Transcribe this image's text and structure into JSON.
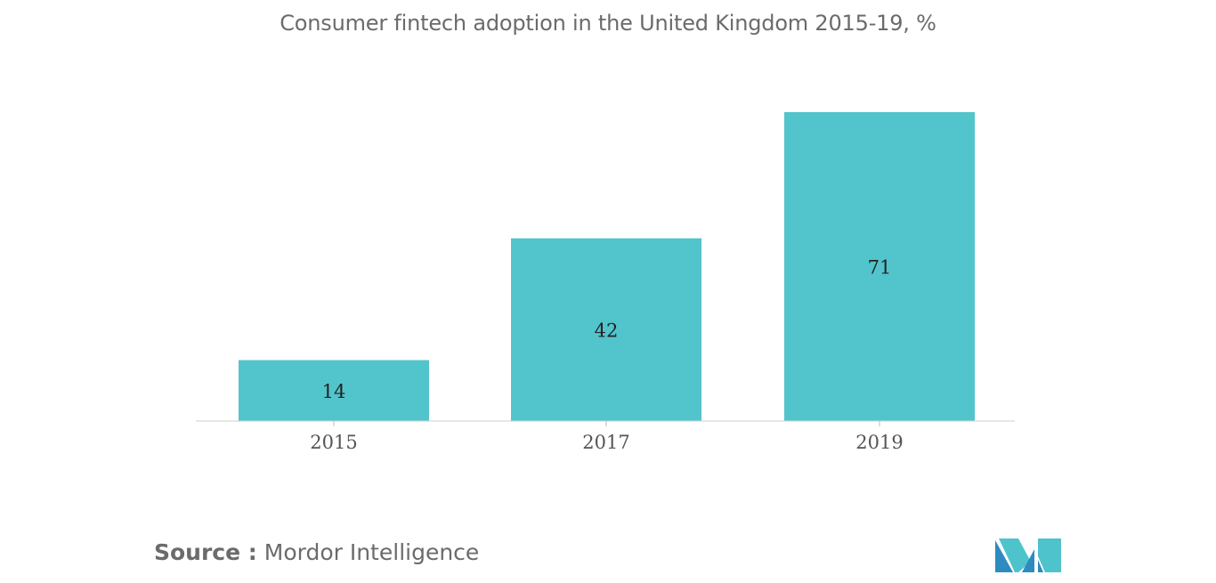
{
  "chart_data": {
    "type": "bar",
    "title": "Consumer fintech adoption in the United Kingdom 2015-19, %",
    "categories": [
      "2015",
      "2017",
      "2019"
    ],
    "values": [
      14,
      42,
      71
    ],
    "xlabel": "",
    "ylabel": "",
    "ylim": [
      0,
      71
    ],
    "grid": false,
    "legend": "none",
    "bar_color": "#52c4cc",
    "label_color": "#222222",
    "tick_color": "#555555"
  },
  "source": {
    "label": "Source :",
    "value": "Mordor Intelligence"
  },
  "logo": {
    "icon": "mordor-intelligence-logo-icon",
    "colors": [
      "#2e8bc0",
      "#4fc3cc"
    ]
  }
}
